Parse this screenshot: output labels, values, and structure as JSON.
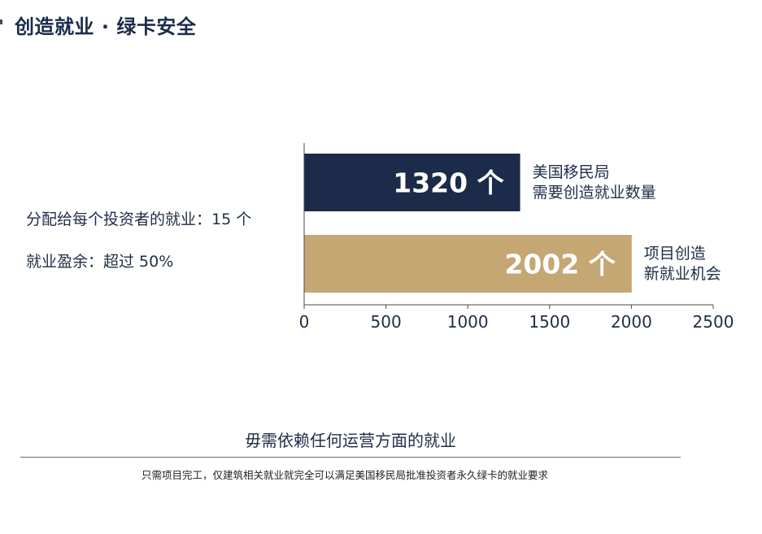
{
  "header": {
    "title": "创造就业 · 绿卡安全"
  },
  "stats": {
    "jobs_per_investor": "分配给每个投资者的就业：15 个",
    "job_surplus": "就业盈余：超过 50%"
  },
  "chart_data": {
    "type": "bar",
    "orientation": "horizontal",
    "categories": [
      "美国移民局需要创造就业数量",
      "项目创造新就业机会"
    ],
    "values": [
      1320,
      2002
    ],
    "bar_labels": [
      "1320 个",
      "2002 个"
    ],
    "category_labels": [
      [
        "美国移民局",
        "需要创造就业数量"
      ],
      [
        "项目创造",
        "新就业机会"
      ]
    ],
    "colors": [
      "#1b2b49",
      "#c5a774"
    ],
    "xlim": [
      0,
      2500
    ],
    "xticks": [
      0,
      500,
      1000,
      1500,
      2000,
      2500
    ],
    "tick_labels": [
      "0",
      "500",
      "1000",
      "1500",
      "2000",
      "2500"
    ],
    "grid": false,
    "legend": "none"
  },
  "footer": {
    "heading": "毋需依赖任何运营方面的就业",
    "note": "只需项目完工，仅建筑相关就业就完全可以满足美国移民局批准投资者永久绿卡的就业要求"
  }
}
